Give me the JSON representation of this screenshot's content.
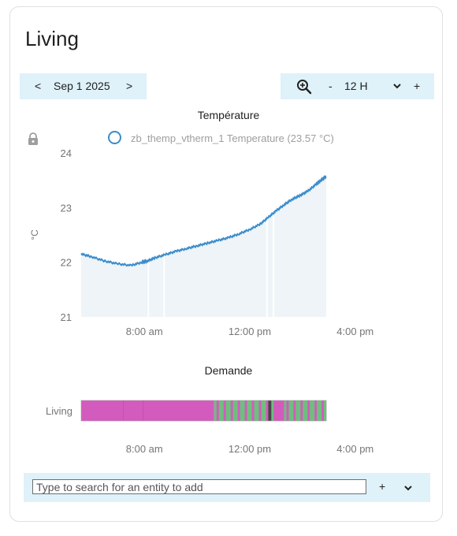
{
  "card": {
    "title": "Living"
  },
  "date_nav": {
    "prev_label": "<",
    "date": "Sep 1 2025",
    "next_label": ">"
  },
  "zoom": {
    "icon": "zoom-in-icon",
    "minus_label": "-",
    "value": "12 H",
    "dropdown_icon": "chevron-down-icon",
    "plus_label": "+"
  },
  "lock_icon": "lock-icon",
  "chart_data": [
    {
      "type": "line",
      "title": "Température",
      "ylabel": "°C",
      "y_ticks": [
        "24",
        "23",
        "22",
        "21"
      ],
      "ylim": [
        21,
        24
      ],
      "x_ticks": [
        "8:00 am",
        "12:00 pm",
        "4:00 pm"
      ],
      "x_tick_hours": [
        8,
        12,
        16
      ],
      "xlim_hours": [
        5.6,
        14.9
      ],
      "legend": {
        "placement": "top",
        "color": "#3a8ccb"
      },
      "series": [
        {
          "name": "zb_themp_vtherm_1 Temperature (23.57 °C)",
          "color": "#3a8ccb",
          "x_hours": [
            5.6,
            6.0,
            6.5,
            7.0,
            7.5,
            7.9,
            8.1,
            8.4,
            8.8,
            9.2,
            9.6,
            10.0,
            10.4,
            10.8,
            11.2,
            11.6,
            12.0,
            12.4,
            12.7,
            13.0,
            13.3,
            13.6,
            13.9,
            14.2,
            14.5,
            14.7,
            14.9
          ],
          "values": [
            22.15,
            22.1,
            22.02,
            21.97,
            21.94,
            22.0,
            22.02,
            22.08,
            22.14,
            22.2,
            22.25,
            22.3,
            22.35,
            22.4,
            22.45,
            22.52,
            22.6,
            22.7,
            22.82,
            22.94,
            23.05,
            23.15,
            23.22,
            23.3,
            23.42,
            23.5,
            23.57
          ],
          "gaps_hours": [
            8.15,
            8.75,
            12.65,
            12.9
          ]
        }
      ],
      "grid": false
    },
    {
      "type": "timeline",
      "title": "Demande",
      "row_label": "Living",
      "x_ticks": [
        "8:00 am",
        "12:00 pm",
        "4:00 pm"
      ],
      "x_tick_hours": [
        8,
        12,
        16
      ],
      "xlim_hours": [
        5.6,
        14.9
      ],
      "colors": {
        "on": "#d45bbe",
        "off": "#6dbf7d",
        "dark": "#454545"
      },
      "segments": [
        {
          "start": 5.6,
          "end": 10.65,
          "state": "on"
        },
        {
          "start": 10.65,
          "end": 12.7,
          "state": "mixed"
        },
        {
          "start": 12.7,
          "end": 12.82,
          "state": "dark"
        },
        {
          "start": 12.82,
          "end": 12.9,
          "state": "mixed"
        },
        {
          "start": 12.9,
          "end": 13.3,
          "state": "on"
        },
        {
          "start": 13.3,
          "end": 14.9,
          "state": "mixed"
        }
      ]
    }
  ],
  "search": {
    "placeholder": "Type to search for an entity to add",
    "add_label": "+",
    "dropdown_icon": "chevron-down-icon"
  }
}
